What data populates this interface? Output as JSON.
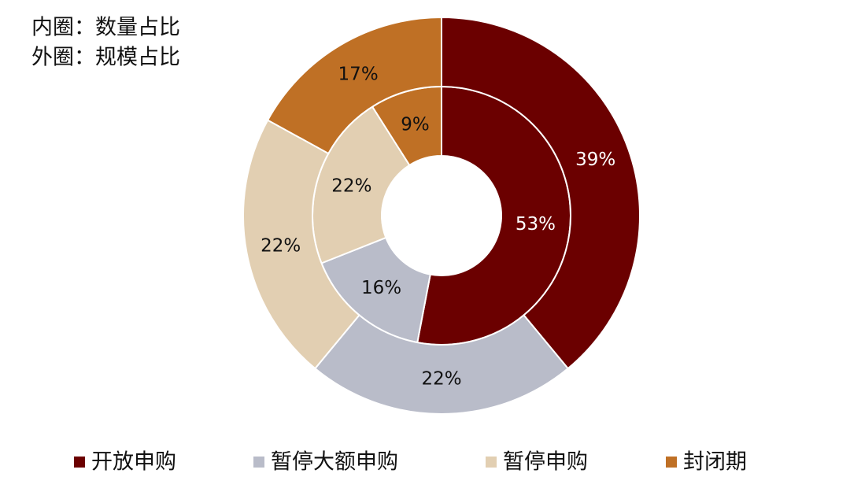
{
  "chart_data": {
    "type": "donut",
    "annotations": [
      "内圈：数量占比",
      "外圈：规模占比"
    ],
    "categories": [
      "开放申购",
      "暂停大额申购",
      "暂停申购",
      "封闭期"
    ],
    "colors": [
      "#6b0000",
      "#b9bcc9",
      "#e2cfb2",
      "#bf7025"
    ],
    "series": [
      {
        "values": [
          53,
          16,
          22,
          9
        ],
        "value_labels": [
          "53%",
          "16%",
          "22%",
          "9%"
        ]
      },
      {
        "values": [
          39,
          22,
          22,
          17
        ],
        "value_labels": [
          "39%",
          "22%",
          "22%",
          "17%"
        ]
      }
    ]
  }
}
